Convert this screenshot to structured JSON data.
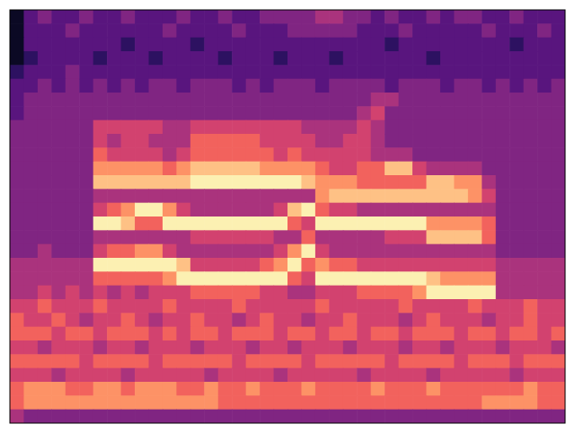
{
  "chart_data": {
    "type": "heatmap",
    "tick_labels": false,
    "zlim": [
      0,
      9
    ],
    "cells": [
      [
        0,
        2,
        3,
        2,
        2,
        3,
        2,
        2,
        3,
        2,
        2,
        2,
        3,
        2,
        2,
        3,
        2,
        2,
        3,
        3,
        3,
        3,
        4,
        4,
        3,
        3,
        2,
        3,
        2,
        2,
        3,
        2,
        3,
        3,
        2,
        2,
        3,
        2,
        2,
        2
      ],
      [
        0,
        2,
        2,
        2,
        3,
        2,
        2,
        2,
        2,
        2,
        2,
        3,
        2,
        2,
        2,
        2,
        3,
        2,
        2,
        2,
        3,
        3,
        3,
        3,
        3,
        2,
        2,
        2,
        3,
        2,
        2,
        2,
        2,
        2,
        3,
        2,
        2,
        2,
        3,
        2
      ],
      [
        0,
        2,
        2,
        2,
        2,
        2,
        2,
        2,
        1,
        2,
        2,
        2,
        2,
        1,
        2,
        2,
        2,
        2,
        2,
        2,
        2,
        2,
        2,
        2,
        2,
        2,
        2,
        1,
        2,
        2,
        2,
        2,
        2,
        2,
        2,
        2,
        1,
        2,
        2,
        2
      ],
      [
        0,
        1,
        2,
        2,
        2,
        2,
        1,
        2,
        2,
        2,
        1,
        2,
        2,
        2,
        2,
        1,
        2,
        2,
        2,
        1,
        2,
        2,
        2,
        1,
        2,
        2,
        2,
        2,
        2,
        2,
        1,
        2,
        2,
        2,
        2,
        2,
        2,
        2,
        2,
        2
      ],
      [
        1,
        2,
        2,
        2,
        3,
        2,
        2,
        2,
        2,
        2,
        2,
        2,
        2,
        2,
        2,
        2,
        2,
        2,
        2,
        2,
        2,
        2,
        2,
        2,
        2,
        2,
        2,
        2,
        2,
        2,
        2,
        2,
        2,
        2,
        2,
        2,
        2,
        2,
        2,
        2
      ],
      [
        2,
        2,
        3,
        2,
        3,
        2,
        3,
        2,
        3,
        2,
        3,
        3,
        2,
        3,
        3,
        3,
        2,
        3,
        2,
        3,
        3,
        3,
        2,
        3,
        3,
        3,
        3,
        2,
        3,
        3,
        3,
        2,
        3,
        3,
        2,
        3,
        2,
        3,
        2,
        3
      ],
      [
        2,
        3,
        3,
        3,
        3,
        3,
        3,
        3,
        3,
        3,
        3,
        3,
        3,
        3,
        3,
        3,
        3,
        3,
        3,
        3,
        3,
        3,
        3,
        3,
        3,
        3,
        4,
        4,
        3,
        3,
        3,
        3,
        3,
        3,
        3,
        3,
        3,
        3,
        3,
        3
      ],
      [
        2,
        3,
        3,
        3,
        3,
        3,
        3,
        3,
        3,
        3,
        3,
        3,
        3,
        3,
        3,
        3,
        3,
        3,
        3,
        3,
        3,
        3,
        3,
        3,
        3,
        4,
        5,
        3,
        3,
        3,
        3,
        3,
        3,
        3,
        3,
        3,
        3,
        3,
        3,
        3
      ],
      [
        3,
        3,
        3,
        3,
        3,
        3,
        5,
        5,
        5,
        5,
        5,
        4,
        4,
        5,
        5,
        5,
        5,
        5,
        5,
        5,
        5,
        4,
        4,
        4,
        4,
        5,
        4,
        3,
        3,
        3,
        3,
        3,
        3,
        3,
        3,
        3,
        3,
        3,
        3,
        3
      ],
      [
        3,
        3,
        3,
        3,
        3,
        3,
        5,
        4,
        5,
        5,
        4,
        4,
        4,
        6,
        6,
        6,
        6,
        6,
        5,
        5,
        5,
        5,
        4,
        4,
        5,
        5,
        4,
        3,
        3,
        3,
        3,
        3,
        3,
        3,
        3,
        3,
        3,
        3,
        3,
        3
      ],
      [
        3,
        3,
        3,
        3,
        3,
        3,
        6,
        5,
        5,
        5,
        5,
        4,
        5,
        6,
        6,
        6,
        6,
        6,
        6,
        5,
        6,
        5,
        5,
        5,
        5,
        5,
        4,
        4,
        4,
        3,
        3,
        3,
        3,
        3,
        3,
        3,
        3,
        3,
        3,
        3
      ],
      [
        3,
        3,
        3,
        3,
        3,
        3,
        7,
        7,
        7,
        7,
        7,
        6,
        7,
        8,
        8,
        8,
        8,
        8,
        7,
        7,
        7,
        7,
        6,
        5,
        5,
        6,
        6,
        8,
        8,
        5,
        4,
        4,
        4,
        4,
        3,
        3,
        3,
        3,
        3,
        3
      ],
      [
        3,
        3,
        3,
        3,
        3,
        3,
        8,
        8,
        8,
        8,
        8,
        8,
        8,
        9,
        9,
        9,
        9,
        9,
        9,
        9,
        9,
        8,
        7,
        7,
        7,
        6,
        6,
        6,
        6,
        6,
        8,
        8,
        7,
        7,
        4,
        3,
        3,
        3,
        3,
        3
      ],
      [
        3,
        3,
        3,
        3,
        3,
        3,
        4,
        4,
        4,
        4,
        4,
        4,
        4,
        4,
        4,
        4,
        4,
        4,
        4,
        4,
        4,
        4,
        7,
        8,
        8,
        8,
        8,
        8,
        8,
        8,
        8,
        8,
        8,
        7,
        5,
        3,
        3,
        3,
        3,
        3
      ],
      [
        3,
        3,
        3,
        3,
        3,
        3,
        5,
        6,
        7,
        9,
        9,
        7,
        5,
        4,
        4,
        4,
        4,
        4,
        4,
        5,
        8,
        9,
        6,
        5,
        5,
        4,
        4,
        4,
        4,
        4,
        4,
        4,
        4,
        4,
        4,
        3,
        3,
        3,
        3,
        3
      ],
      [
        3,
        3,
        3,
        3,
        3,
        3,
        9,
        9,
        8,
        6,
        6,
        9,
        9,
        9,
        9,
        9,
        9,
        9,
        9,
        9,
        6,
        5,
        9,
        9,
        9,
        9,
        9,
        9,
        9,
        9,
        7,
        7,
        7,
        7,
        6,
        3,
        3,
        3,
        3,
        3
      ],
      [
        3,
        3,
        3,
        3,
        3,
        3,
        4,
        4,
        4,
        4,
        4,
        4,
        4,
        5,
        5,
        5,
        5,
        5,
        5,
        4,
        4,
        6,
        4,
        4,
        4,
        4,
        4,
        5,
        5,
        5,
        8,
        8,
        8,
        8,
        6,
        3,
        3,
        3,
        3,
        3
      ],
      [
        3,
        3,
        4,
        3,
        3,
        3,
        5,
        6,
        6,
        7,
        7,
        5,
        4,
        4,
        4,
        4,
        4,
        4,
        4,
        5,
        7,
        9,
        5,
        4,
        4,
        4,
        4,
        4,
        4,
        4,
        4,
        4,
        4,
        4,
        4,
        3,
        3,
        3,
        3,
        3
      ],
      [
        4,
        4,
        4,
        4,
        4,
        4,
        9,
        9,
        9,
        9,
        9,
        9,
        8,
        5,
        5,
        5,
        5,
        5,
        6,
        7,
        9,
        6,
        7,
        6,
        6,
        5,
        5,
        5,
        5,
        5,
        5,
        5,
        5,
        5,
        5,
        4,
        4,
        4,
        4,
        4
      ],
      [
        4,
        4,
        4,
        4,
        4,
        4,
        6,
        6,
        6,
        6,
        6,
        7,
        9,
        9,
        9,
        9,
        9,
        9,
        9,
        9,
        6,
        5,
        9,
        9,
        9,
        9,
        9,
        9,
        9,
        9,
        8,
        7,
        7,
        7,
        7,
        4,
        4,
        4,
        4,
        4
      ],
      [
        4,
        4,
        5,
        4,
        5,
        4,
        5,
        4,
        5,
        4,
        5,
        5,
        5,
        6,
        6,
        6,
        6,
        6,
        5,
        5,
        4,
        4,
        5,
        5,
        5,
        6,
        6,
        6,
        6,
        7,
        9,
        9,
        9,
        9,
        9,
        4,
        4,
        4,
        4,
        4
      ],
      [
        5,
        5,
        6,
        5,
        5,
        5,
        6,
        5,
        5,
        5,
        5,
        6,
        5,
        5,
        5,
        5,
        6,
        5,
        5,
        5,
        5,
        5,
        6,
        5,
        5,
        5,
        5,
        5,
        6,
        5,
        5,
        5,
        5,
        6,
        5,
        5,
        5,
        6,
        5,
        5
      ],
      [
        6,
        5,
        5,
        6,
        5,
        4,
        5,
        5,
        6,
        5,
        4,
        5,
        5,
        6,
        5,
        5,
        4,
        5,
        6,
        5,
        5,
        4,
        5,
        5,
        6,
        5,
        5,
        5,
        4,
        5,
        6,
        5,
        5,
        5,
        4,
        5,
        5,
        6,
        5,
        5
      ],
      [
        6,
        6,
        6,
        5,
        6,
        6,
        5,
        6,
        6,
        6,
        5,
        6,
        5,
        6,
        6,
        5,
        6,
        6,
        6,
        5,
        6,
        6,
        5,
        6,
        6,
        5,
        6,
        6,
        5,
        6,
        6,
        6,
        5,
        6,
        6,
        5,
        6,
        6,
        5,
        6
      ],
      [
        5,
        5,
        4,
        5,
        5,
        5,
        4,
        5,
        5,
        4,
        5,
        5,
        5,
        4,
        5,
        5,
        5,
        4,
        5,
        5,
        4,
        5,
        5,
        5,
        4,
        5,
        5,
        5,
        4,
        5,
        5,
        4,
        5,
        5,
        5,
        4,
        5,
        5,
        5,
        4
      ],
      [
        6,
        6,
        6,
        6,
        6,
        5,
        6,
        6,
        6,
        6,
        5,
        6,
        6,
        6,
        6,
        6,
        5,
        6,
        6,
        6,
        6,
        5,
        6,
        6,
        6,
        6,
        6,
        5,
        6,
        6,
        6,
        6,
        5,
        6,
        6,
        6,
        5,
        6,
        6,
        6
      ],
      [
        5,
        5,
        5,
        4,
        5,
        5,
        5,
        5,
        4,
        5,
        5,
        5,
        5,
        5,
        4,
        5,
        5,
        5,
        5,
        4,
        5,
        5,
        5,
        5,
        5,
        4,
        5,
        5,
        5,
        5,
        4,
        5,
        5,
        5,
        5,
        5,
        4,
        5,
        5,
        5
      ],
      [
        6,
        7,
        7,
        7,
        6,
        6,
        7,
        7,
        6,
        7,
        7,
        7,
        6,
        6,
        7,
        6,
        6,
        7,
        6,
        6,
        6,
        7,
        6,
        6,
        6,
        6,
        7,
        6,
        6,
        6,
        7,
        6,
        6,
        6,
        6,
        6,
        6,
        7,
        6,
        6
      ],
      [
        6,
        7,
        7,
        7,
        7,
        7,
        7,
        7,
        7,
        7,
        7,
        7,
        7,
        7,
        7,
        6,
        6,
        6,
        6,
        6,
        6,
        6,
        6,
        6,
        6,
        6,
        6,
        6,
        6,
        6,
        6,
        6,
        6,
        6,
        7,
        7,
        7,
        7,
        6,
        6
      ],
      [
        4,
        3,
        3,
        3,
        3,
        3,
        3,
        3,
        3,
        3,
        3,
        3,
        3,
        3,
        3,
        3,
        3,
        3,
        3,
        3,
        3,
        3,
        3,
        3,
        3,
        3,
        3,
        3,
        3,
        3,
        3,
        3,
        3,
        3,
        3,
        3,
        3,
        3,
        3,
        3
      ]
    ]
  }
}
